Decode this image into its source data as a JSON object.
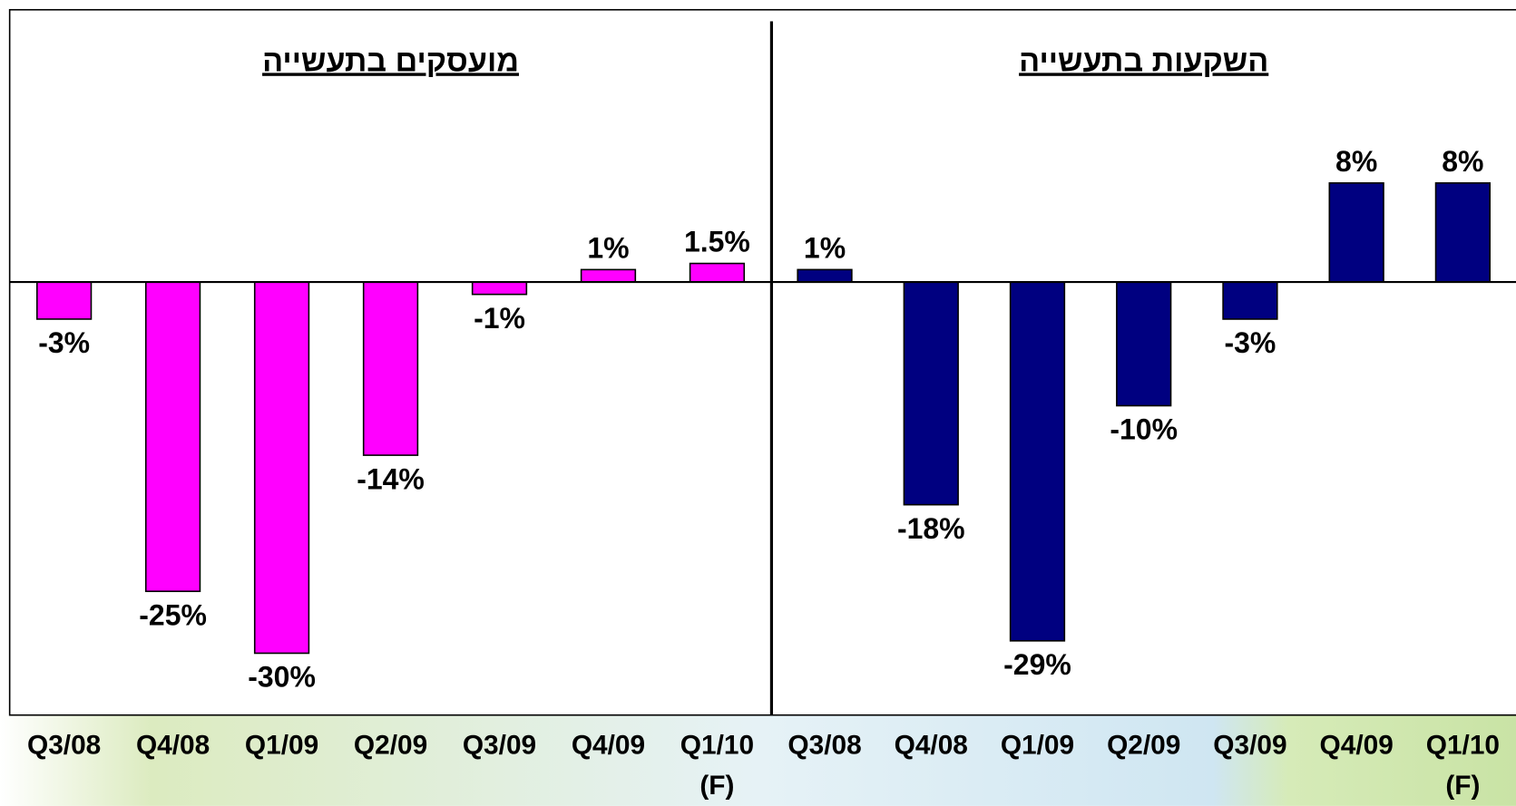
{
  "chart_data": [
    {
      "type": "bar",
      "title": "מועסקים בתעשייה",
      "color": "#ff00ff",
      "categories": [
        "Q3/08",
        "Q4/08",
        "Q1/09",
        "Q2/09",
        "Q3/09",
        "Q4/09",
        "Q1/10 (F)"
      ],
      "values": [
        -3,
        -25,
        -30,
        -14,
        -1,
        1,
        1.5
      ],
      "value_labels": [
        "-3%",
        "-25%",
        "-30%",
        "-14%",
        "-1%",
        "1%",
        "1.5%"
      ],
      "ylim": [
        -35,
        22
      ]
    },
    {
      "type": "bar",
      "title": "השקעות בתעשייה",
      "color": "#000080",
      "categories": [
        "Q3/08",
        "Q4/08",
        "Q1/09",
        "Q2/09",
        "Q3/09",
        "Q4/09",
        "Q1/10 (F)"
      ],
      "values": [
        1,
        -18,
        -29,
        -10,
        -3,
        8,
        8
      ],
      "value_labels": [
        "1%",
        "-18%",
        "-29%",
        "-10%",
        "-3%",
        "8%",
        "8%"
      ],
      "ylim": [
        -35,
        22
      ]
    }
  ]
}
